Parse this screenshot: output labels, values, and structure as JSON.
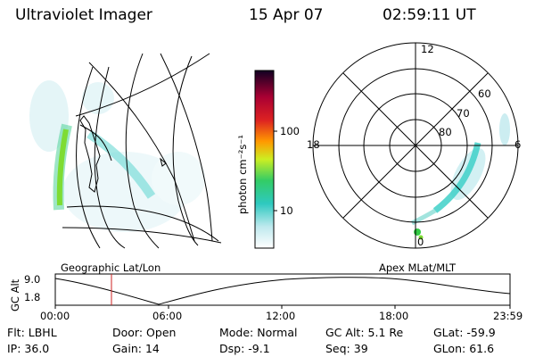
{
  "header": {
    "instrument": "Ultraviolet Imager",
    "date": "15 Apr 07",
    "time": "02:59:11 UT"
  },
  "colorbar": {
    "label": "photon cm⁻²s⁻¹",
    "ticks": [
      "100",
      "10"
    ]
  },
  "polar_plot": {
    "mlt_labels": {
      "top": "12",
      "left": "18",
      "right": "6",
      "bottom": "0"
    },
    "lat_labels": [
      "60",
      "70",
      "80"
    ]
  },
  "timeline": {
    "left_label": "Geographic Lat/Lon",
    "right_label": "Apex MLat/MLT",
    "y_axis_label": "GC Alt",
    "y_ticks": [
      "9.0",
      "1.8"
    ],
    "x_ticks": [
      "00:00",
      "06:00",
      "12:00",
      "18:00",
      "23:59"
    ],
    "current_marker_fraction": 0.125
  },
  "status": {
    "row1": [
      {
        "label": "Flt:",
        "value": "LBHL"
      },
      {
        "label": "Door:",
        "value": "Open"
      },
      {
        "label": "Mode:",
        "value": "Normal"
      },
      {
        "label": "GC Alt:",
        "value": "5.1 Re"
      },
      {
        "label": "GLat:",
        "value": "-59.9"
      }
    ],
    "row2": [
      {
        "label": "IP:",
        "value": "36.0"
      },
      {
        "label": "Gain:",
        "value": "14"
      },
      {
        "label": "Dsp:",
        "value": "-9.1"
      },
      {
        "label": "Seq:",
        "value": "39"
      },
      {
        "label": "GLon:",
        "value": "61.6"
      }
    ]
  },
  "colors": {
    "aurora_faint": "#bfe9ee",
    "aurora_mid": "#40d0c8",
    "aurora_bright": "#7edc33",
    "marker_red": "#cc2222"
  }
}
